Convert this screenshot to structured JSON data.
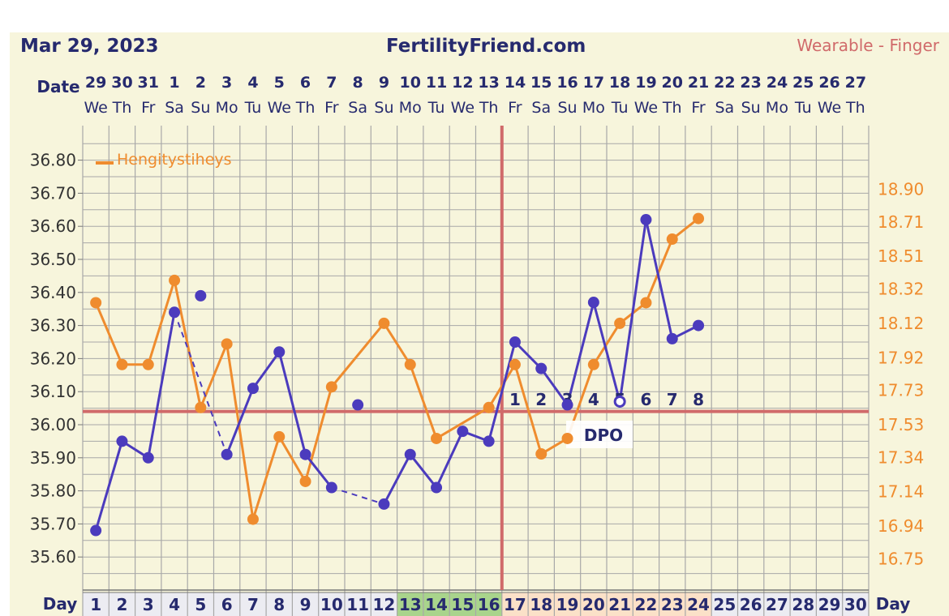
{
  "header": {
    "date": "Mar 29, 2023",
    "site": "FertilityFriend.com",
    "source": "Wearable - Finger"
  },
  "labels": {
    "date": "Date",
    "day": "Day",
    "dpo": "DPO"
  },
  "colors": {
    "background": "#f7f5dc",
    "navy": "#262a6e",
    "temp_series": "#4b3bbd",
    "second_series": "#ef8c2e",
    "coverline": "#d06a6a",
    "grid": "#a8a8a8",
    "fertile_bg": "#a9d48c",
    "luteal_bg": "#fbe1c8",
    "day_cell_bg": "#ececf2",
    "source_text": "#d06a6a"
  },
  "chart_data": {
    "type": "line",
    "dates": [
      "29",
      "30",
      "31",
      "1",
      "2",
      "3",
      "4",
      "5",
      "6",
      "7",
      "8",
      "9",
      "10",
      "11",
      "12",
      "13",
      "14",
      "15",
      "16",
      "17",
      "18",
      "19",
      "20",
      "21",
      "22",
      "23",
      "24",
      "25",
      "26",
      "27"
    ],
    "weekdays": [
      "We",
      "Th",
      "Fr",
      "Sa",
      "Su",
      "Mo",
      "Tu",
      "We",
      "Th",
      "Fr",
      "Sa",
      "Su",
      "Mo",
      "Tu",
      "We",
      "Th",
      "Fr",
      "Sa",
      "Su",
      "Mo",
      "Tu",
      "We",
      "Th",
      "Fr",
      "Sa",
      "Su",
      "Mo",
      "Tu",
      "We",
      "Th"
    ],
    "days": [
      1,
      2,
      3,
      4,
      5,
      6,
      7,
      8,
      9,
      10,
      11,
      12,
      13,
      14,
      15,
      16,
      17,
      18,
      19,
      20,
      21,
      22,
      23,
      24,
      25,
      26,
      27,
      28,
      29,
      30
    ],
    "fertile_days": [
      13,
      14,
      15,
      16
    ],
    "luteal_days": [
      17,
      18,
      19,
      20,
      21,
      22,
      23,
      24
    ],
    "left_axis": {
      "ticks": [
        "36.80",
        "36.70",
        "36.60",
        "36.50",
        "36.40",
        "36.30",
        "36.20",
        "36.10",
        "36.00",
        "35.90",
        "35.80",
        "35.70",
        "35.60"
      ],
      "ylim": [
        35.55,
        36.85
      ]
    },
    "right_axis": {
      "ticks": [
        "18.90",
        "18.71",
        "18.51",
        "18.32",
        "18.12",
        "17.92",
        "17.73",
        "17.53",
        "17.34",
        "17.14",
        "16.94",
        "16.75"
      ],
      "ylim": [
        16.7,
        19.0
      ]
    },
    "series": [
      {
        "axis": "left",
        "points": [
          {
            "day": 1,
            "value": 35.68
          },
          {
            "day": 2,
            "value": 35.95
          },
          {
            "day": 3,
            "value": 35.9
          },
          {
            "day": 4,
            "value": 36.34
          },
          {
            "day": 5,
            "value": 36.39
          },
          {
            "day": 6,
            "value": 35.91
          },
          {
            "day": 7,
            "value": 36.11
          },
          {
            "day": 8,
            "value": 36.22
          },
          {
            "day": 9,
            "value": 35.91
          },
          {
            "day": 10,
            "value": 35.81
          },
          {
            "day": 11,
            "value": 36.06
          },
          {
            "day": 12,
            "value": 35.76
          },
          {
            "day": 13,
            "value": 35.91
          },
          {
            "day": 14,
            "value": 35.81
          },
          {
            "day": 15,
            "value": 35.98
          },
          {
            "day": 16,
            "value": 35.95
          },
          {
            "day": 17,
            "value": 36.25
          },
          {
            "day": 18,
            "value": 36.17
          },
          {
            "day": 19,
            "value": 36.06
          },
          {
            "day": 20,
            "value": 36.37
          },
          {
            "day": 21,
            "value": 36.07
          },
          {
            "day": 22,
            "value": 36.62
          },
          {
            "day": 23,
            "value": 36.26
          },
          {
            "day": 24,
            "value": 36.3
          }
        ],
        "excluded_days": [
          5,
          11
        ],
        "dashed_segments": [
          [
            4,
            6
          ],
          [
            10,
            12
          ]
        ]
      },
      {
        "name": "Hengitystiheys",
        "axis": "right",
        "points": [
          {
            "day": 1,
            "value": 18.24
          },
          {
            "day": 2,
            "value": 17.88
          },
          {
            "day": 3,
            "value": 17.88
          },
          {
            "day": 4,
            "value": 18.37
          },
          {
            "day": 5,
            "value": 17.63
          },
          {
            "day": 6,
            "value": 18.0
          },
          {
            "day": 7,
            "value": 16.98
          },
          {
            "day": 8,
            "value": 17.46
          },
          {
            "day": 9,
            "value": 17.2
          },
          {
            "day": 10,
            "value": 17.75
          },
          {
            "day": 12,
            "value": 18.12
          },
          {
            "day": 13,
            "value": 17.88
          },
          {
            "day": 14,
            "value": 17.45
          },
          {
            "day": 16,
            "value": 17.63
          },
          {
            "day": 17,
            "value": 17.88
          },
          {
            "day": 18,
            "value": 17.36
          },
          {
            "day": 19,
            "value": 17.45
          },
          {
            "day": 20,
            "value": 17.88
          },
          {
            "day": 21,
            "value": 18.12
          },
          {
            "day": 22,
            "value": 18.24
          },
          {
            "day": 23,
            "value": 18.61
          },
          {
            "day": 24,
            "value": 18.73
          }
        ]
      }
    ],
    "coverline": 36.04,
    "ovulation_day": 16,
    "dpo_labels": [
      "1",
      "2",
      "3",
      "4",
      "5",
      "6",
      "7",
      "8"
    ],
    "legend": "top-left"
  }
}
